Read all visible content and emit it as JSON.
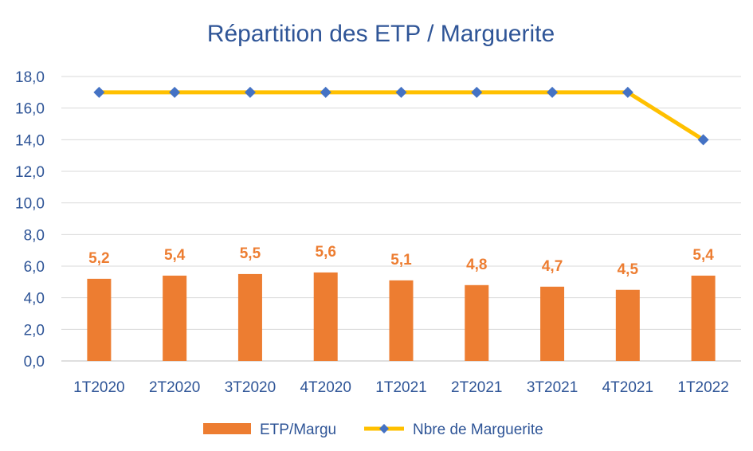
{
  "chart_data": {
    "type": "bar",
    "title": "Répartition des ETP / Marguerite",
    "categories": [
      "1T2020",
      "2T2020",
      "3T2020",
      "4T2020",
      "1T2021",
      "2T2021",
      "3T2021",
      "4T2021",
      "1T2022"
    ],
    "series": [
      {
        "name": "ETP/Margu",
        "type": "bar",
        "values": [
          5.2,
          5.4,
          5.5,
          5.6,
          5.1,
          4.8,
          4.7,
          4.5,
          5.4
        ],
        "data_labels": [
          "5,2",
          "5,4",
          "5,5",
          "5,6",
          "5,1",
          "4,8",
          "4,7",
          "4,5",
          "5,4"
        ],
        "color": "#ED7D31"
      },
      {
        "name": "Nbre de Marguerite",
        "type": "line",
        "values": [
          17,
          17,
          17,
          17,
          17,
          17,
          17,
          17,
          14
        ],
        "line_color": "#FFC000",
        "marker_color": "#4472C4",
        "marker": "diamond"
      }
    ],
    "ylim": [
      0,
      18
    ],
    "yticks": [
      "0,0",
      "2,0",
      "4,0",
      "6,0",
      "8,0",
      "10,0",
      "12,0",
      "14,0",
      "16,0",
      "18,0"
    ],
    "grid": true,
    "legend_position": "bottom",
    "text_color": "#2F5597",
    "grid_color": "#D9D9D9"
  }
}
